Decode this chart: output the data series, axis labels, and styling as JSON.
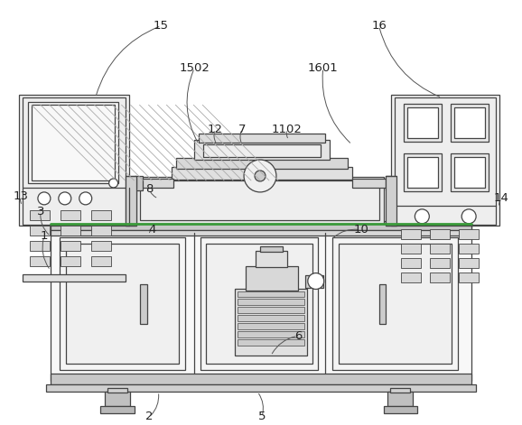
{
  "fig_width": 5.78,
  "fig_height": 4.71,
  "dpi": 100,
  "bg_color": "#ffffff",
  "lc": "#444444",
  "lw": 0.9
}
